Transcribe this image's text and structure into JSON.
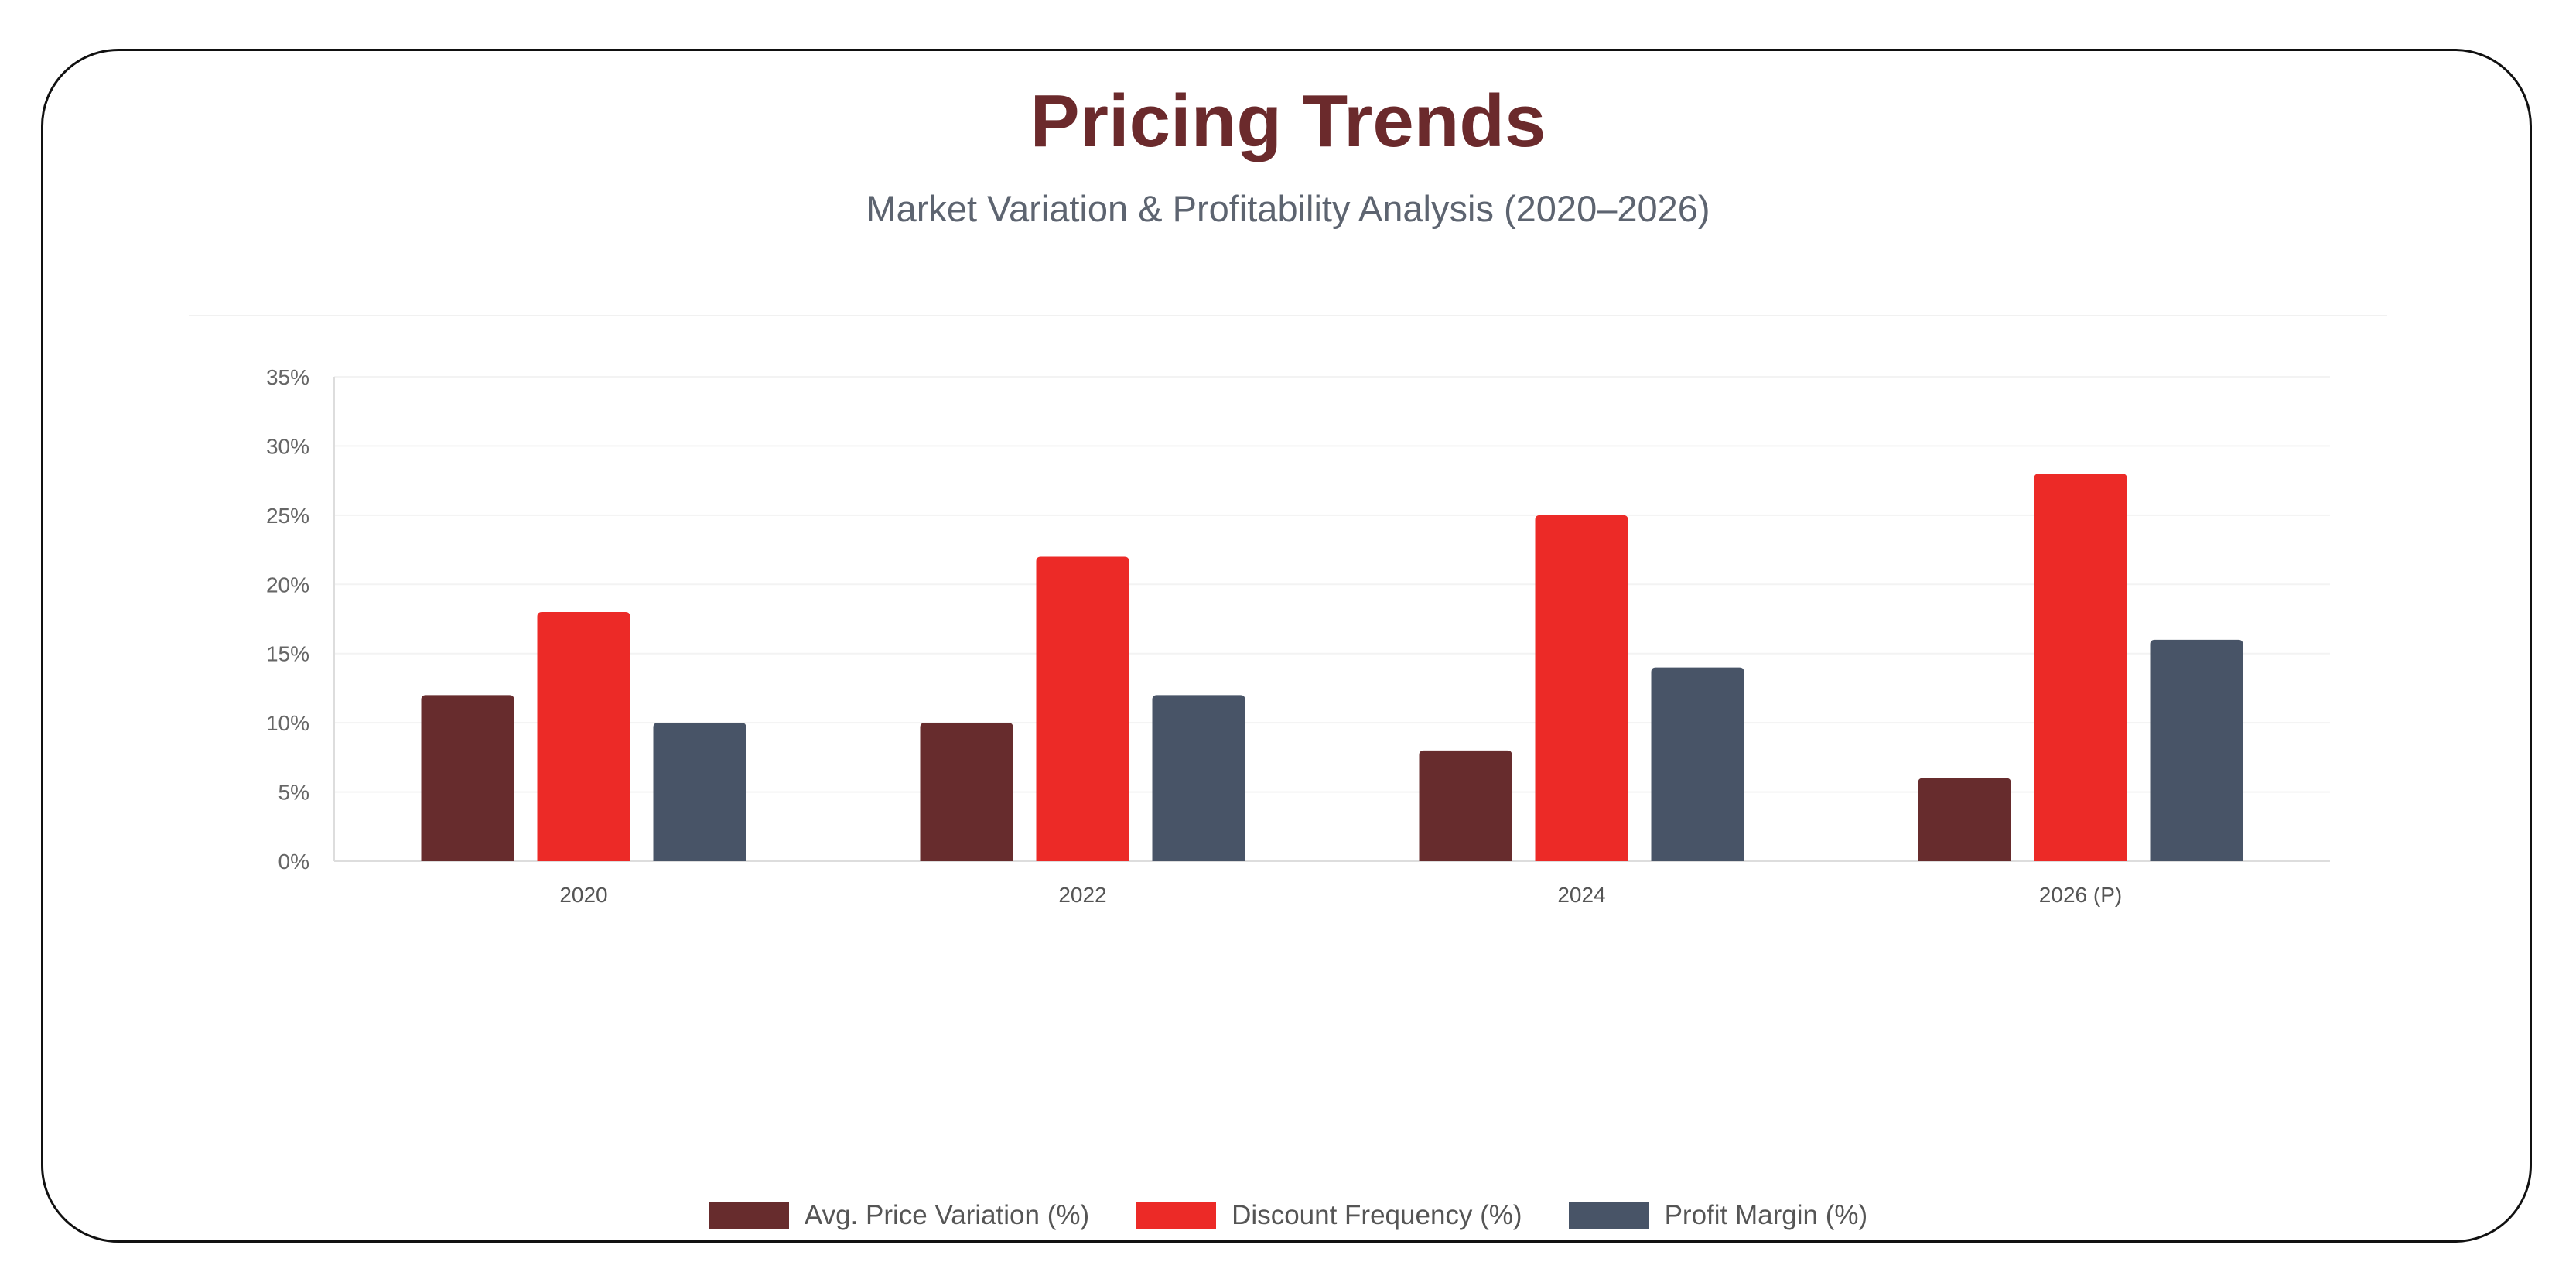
{
  "chart_data": {
    "type": "bar",
    "title": "Pricing Trends",
    "subtitle": "Market Variation & Profitability Analysis (2020–2026)",
    "categories": [
      "2020",
      "2022",
      "2024",
      "2026 (P)"
    ],
    "series": [
      {
        "name": "Avg. Price Variation (%)",
        "color": "#672c2d",
        "values": [
          12,
          10,
          8,
          6
        ]
      },
      {
        "name": "Discount Frequency (%)",
        "color": "#ec2a27",
        "values": [
          18,
          22,
          25,
          28
        ]
      },
      {
        "name": "Profit Margin (%)",
        "color": "#485467",
        "values": [
          10,
          12,
          14,
          16
        ]
      }
    ],
    "ylim": [
      0,
      35
    ],
    "yticks": [
      0,
      5,
      10,
      15,
      20,
      25,
      30,
      35
    ],
    "ytick_labels": [
      "0%",
      "5%",
      "10%",
      "15%",
      "20%",
      "25%",
      "30%",
      "35%"
    ],
    "xlabel": "",
    "ylabel": "",
    "grid": true,
    "legend": "bottom-center"
  }
}
